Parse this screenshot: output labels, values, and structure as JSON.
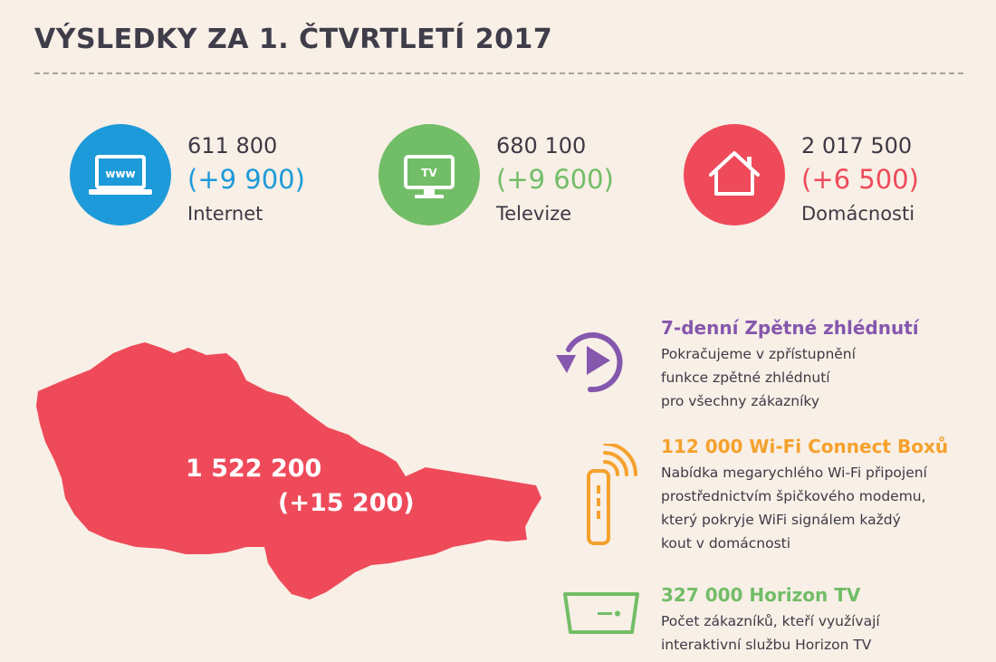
{
  "header": {
    "title": "VÝSLEDKY ZA 1. ČTVRTLETÍ 2017"
  },
  "colors": {
    "internet": "#1d9ad9",
    "tv": "#72bd67",
    "homes": "#ee4a5a",
    "purple": "#8557ad",
    "orange": "#f5a12d",
    "green": "#72bd67",
    "map": "#ee4a5a"
  },
  "stats": [
    {
      "count": "611 800",
      "delta": "(+9 900)",
      "label": "Internet",
      "icon": "laptop-www-icon",
      "icon_text": "www"
    },
    {
      "count": "680 100",
      "delta": "(+9 600)",
      "label": "Televize",
      "icon": "tv-icon",
      "icon_text": "TV"
    },
    {
      "count": "2 017 500",
      "delta": "(+6 500)",
      "label": "Domácnosti",
      "icon": "house-icon"
    }
  ],
  "map": {
    "total": "1 522 200",
    "delta": "(+15 200)",
    "icon": "czech-slovak-map"
  },
  "features": [
    {
      "title": "7-denní Zpětné zhlédnutí",
      "lines": [
        "Pokračujeme v zpřístupnění",
        "funkce zpětné zhlédnutí",
        "pro všechny zákazníky"
      ],
      "icon": "replay-icon"
    },
    {
      "title": "112 000 Wi-Fi Connect Boxů",
      "lines": [
        "Nabídka megarychlého Wi-Fi připojení",
        "prostřednictvím špičkového modemu,",
        "který pokryje WiFi signálem každý",
        "kout v domácnosti"
      ],
      "icon": "wifi-modem-icon"
    },
    {
      "title": "327 000 Horizon TV",
      "lines": [
        "Počet zákazníků, kteří využívají",
        "interaktivní službu Horizon TV"
      ],
      "icon": "set-top-box-icon"
    }
  ]
}
